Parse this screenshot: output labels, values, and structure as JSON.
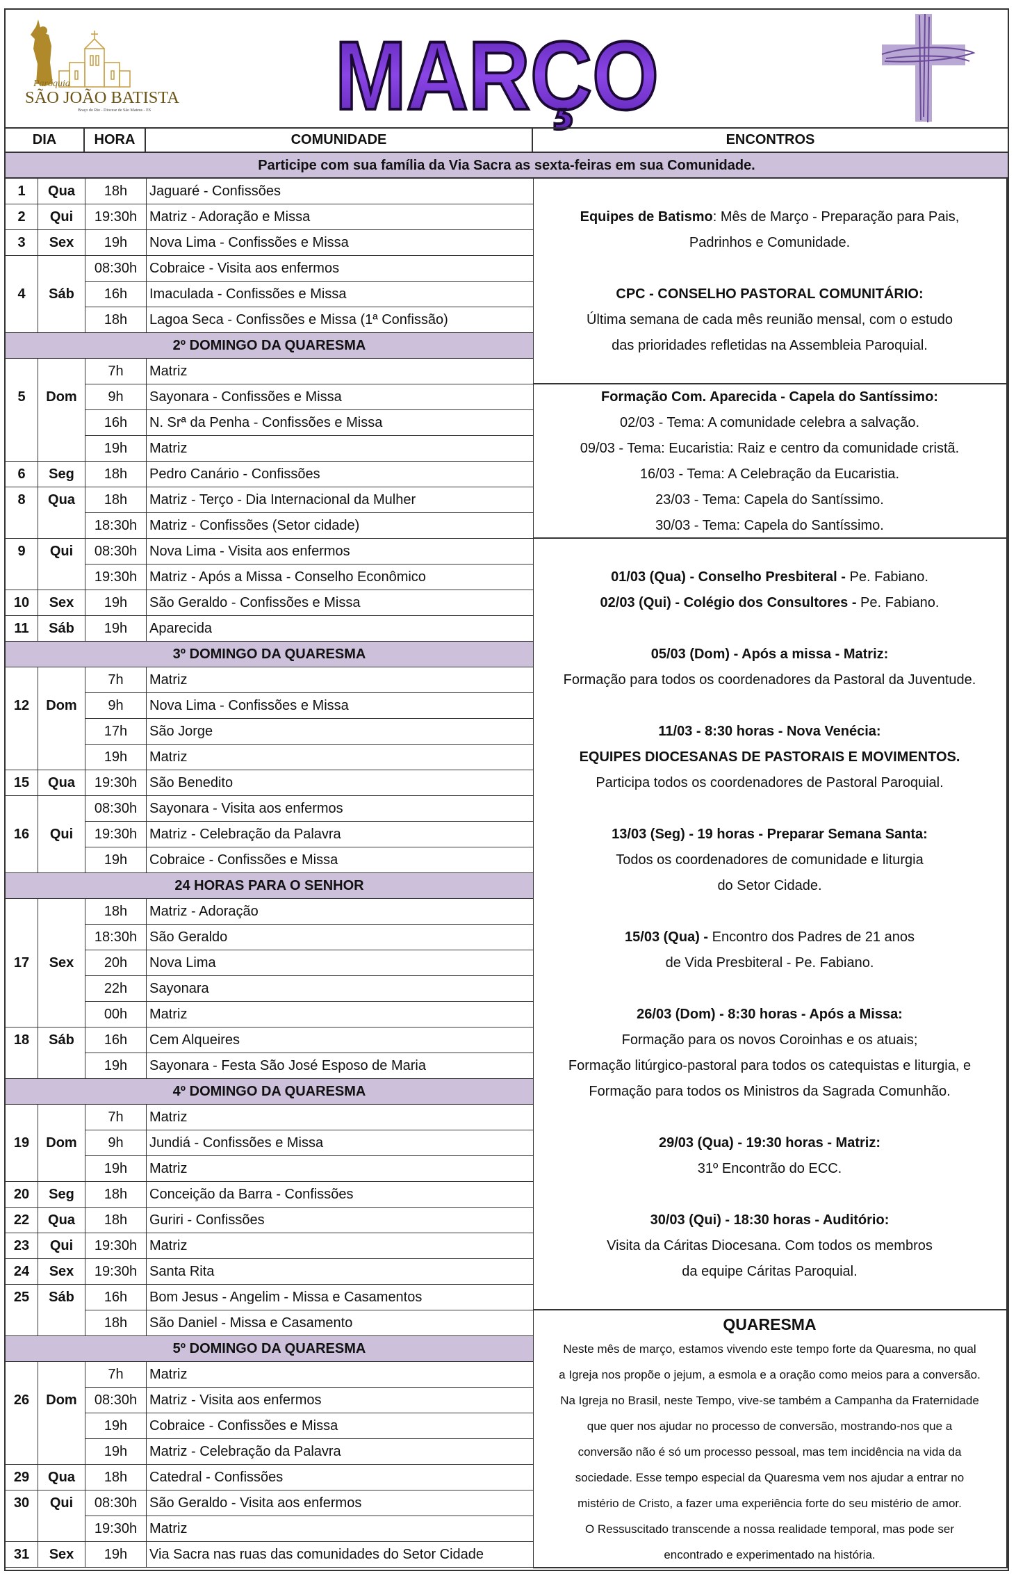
{
  "header": {
    "title": "MARÇO",
    "logo": {
      "line1": "Paróquia",
      "line2": "SÃO JOÃO BATISTA",
      "line3": "Braço do Rio - Diocese de São Mateus - ES"
    },
    "title_color": "#7b35d6",
    "cross_color": "#7b5aa6"
  },
  "columns": {
    "dia": "DIA",
    "hora": "HORA",
    "comunidade": "COMUNIDADE",
    "encontros": "ENCONTROS"
  },
  "notice": "Participe com sua família da Via Sacra as sexta-feiras em sua Comunidade.",
  "colors": {
    "band": "#ccc0da",
    "border": "#333333"
  },
  "schedule": [
    {
      "type": "day",
      "day": "1",
      "weekday": "Qua",
      "events": [
        {
          "time": "18h",
          "place": "Jaguaré - Confissões"
        }
      ]
    },
    {
      "type": "day",
      "day": "2",
      "weekday": "Qui",
      "events": [
        {
          "time": "19:30h",
          "place": "Matriz - Adoração e Missa"
        }
      ]
    },
    {
      "type": "day",
      "day": "3",
      "weekday": "Sex",
      "events": [
        {
          "time": "19h",
          "place": "Nova Lima - Confissões e Missa"
        }
      ]
    },
    {
      "type": "day",
      "day": "4",
      "weekday": "Sáb",
      "events": [
        {
          "time": "08:30h",
          "place": "Cobraice - Visita aos enfermos"
        },
        {
          "time": "16h",
          "place": "Imaculada - Confissões e Missa"
        },
        {
          "time": "18h",
          "place": "Lagoa Seca - Confissões e Missa (1ª Confissão)"
        }
      ]
    },
    {
      "type": "band",
      "label": "2º DOMINGO DA QUARESMA"
    },
    {
      "type": "day",
      "day": "5",
      "weekday": "Dom",
      "events": [
        {
          "time": "7h",
          "place": "Matriz"
        },
        {
          "time": "9h",
          "place": "Sayonara - Confissões e Missa"
        },
        {
          "time": "16h",
          "place": "N. Srª da Penha - Confissões e Missa"
        },
        {
          "time": "19h",
          "place": "Matriz"
        }
      ]
    },
    {
      "type": "day",
      "day": "6",
      "weekday": "Seg",
      "events": [
        {
          "time": "18h",
          "place": "Pedro Canário - Confissões"
        }
      ]
    },
    {
      "type": "day",
      "day": "8",
      "weekday": "Qua",
      "events": [
        {
          "time": "18h",
          "place": "Matriz - Terço - Dia Internacional da Mulher"
        },
        {
          "time": "18:30h",
          "place": "Matriz - Confissões (Setor cidade)"
        }
      ]
    },
    {
      "type": "day",
      "day": "9",
      "weekday": "Qui",
      "events": [
        {
          "time": "08:30h",
          "place": "Nova Lima - Visita aos enfermos"
        },
        {
          "time": "19:30h",
          "place": "Matriz - Após a Missa - Conselho Econômico"
        }
      ]
    },
    {
      "type": "day",
      "day": "10",
      "weekday": "Sex",
      "events": [
        {
          "time": "19h",
          "place": "São Geraldo - Confissões e Missa"
        }
      ]
    },
    {
      "type": "day",
      "day": "11",
      "weekday": "Sáb",
      "events": [
        {
          "time": "19h",
          "place": "Aparecida"
        }
      ]
    },
    {
      "type": "band",
      "label": "3º DOMINGO DA QUARESMA"
    },
    {
      "type": "day",
      "day": "12",
      "weekday": "Dom",
      "events": [
        {
          "time": "7h",
          "place": "Matriz"
        },
        {
          "time": "9h",
          "place": "Nova Lima - Confissões e Missa"
        },
        {
          "time": "17h",
          "place": "São Jorge"
        },
        {
          "time": "19h",
          "place": "Matriz"
        }
      ]
    },
    {
      "type": "day",
      "day": "15",
      "weekday": "Qua",
      "events": [
        {
          "time": "19:30h",
          "place": "São Benedito"
        }
      ]
    },
    {
      "type": "day",
      "day": "16",
      "weekday": "Qui",
      "events": [
        {
          "time": "08:30h",
          "place": "Sayonara - Visita aos enfermos"
        },
        {
          "time": "19:30h",
          "place": "Matriz - Celebração da Palavra"
        },
        {
          "time": "19h",
          "place": "Cobraice - Confissões e Missa"
        }
      ]
    },
    {
      "type": "band",
      "label": "24 HORAS PARA O SENHOR"
    },
    {
      "type": "day",
      "day": "17",
      "weekday": "Sex",
      "events": [
        {
          "time": "18h",
          "place": "Matriz - Adoração"
        },
        {
          "time": "18:30h",
          "place": "São Geraldo"
        },
        {
          "time": "20h",
          "place": "Nova Lima"
        },
        {
          "time": "22h",
          "place": "Sayonara"
        },
        {
          "time": "00h",
          "place": "Matriz"
        }
      ]
    },
    {
      "type": "day",
      "day": "18",
      "weekday": "Sáb",
      "events": [
        {
          "time": "16h",
          "place": "Cem Alqueires"
        },
        {
          "time": "19h",
          "place": "Sayonara - Festa São José Esposo de Maria"
        }
      ]
    },
    {
      "type": "band",
      "label": "4º DOMINGO DA QUARESMA"
    },
    {
      "type": "day",
      "day": "19",
      "weekday": "Dom",
      "events": [
        {
          "time": "7h",
          "place": "Matriz"
        },
        {
          "time": "9h",
          "place": "Jundiá - Confissões e Missa"
        },
        {
          "time": "19h",
          "place": "Matriz"
        }
      ]
    },
    {
      "type": "day",
      "day": "20",
      "weekday": "Seg",
      "events": [
        {
          "time": "18h",
          "place": "Conceição da Barra - Confissões"
        }
      ]
    },
    {
      "type": "day",
      "day": "22",
      "weekday": "Qua",
      "events": [
        {
          "time": "18h",
          "place": "Guriri - Confissões"
        }
      ]
    },
    {
      "type": "day",
      "day": "23",
      "weekday": "Qui",
      "events": [
        {
          "time": "19:30h",
          "place": "Matriz"
        }
      ]
    },
    {
      "type": "day",
      "day": "24",
      "weekday": "Sex",
      "events": [
        {
          "time": "19:30h",
          "place": "Santa Rita"
        }
      ]
    },
    {
      "type": "day",
      "day": "25",
      "weekday": "Sáb",
      "events": [
        {
          "time": "16h",
          "place": "Bom Jesus - Angelim - Missa e Casamentos"
        },
        {
          "time": "18h",
          "place": "São Daniel - Missa e Casamento"
        }
      ]
    },
    {
      "type": "band",
      "label": "5º DOMINGO DA QUARESMA"
    },
    {
      "type": "day",
      "day": "26",
      "weekday": "Dom",
      "events": [
        {
          "time": "7h",
          "place": "Matriz"
        },
        {
          "time": "08:30h",
          "place": "Matriz - Visita aos enfermos"
        },
        {
          "time": "19h",
          "place": "Cobraice - Confissões e Missa"
        },
        {
          "time": "19h",
          "place": "Matriz - Celebração da Palavra"
        }
      ]
    },
    {
      "type": "day",
      "day": "29",
      "weekday": "Qua",
      "events": [
        {
          "time": "18h",
          "place": "Catedral - Confissões"
        }
      ]
    },
    {
      "type": "day",
      "day": "30",
      "weekday": "Qui",
      "events": [
        {
          "time": "08:30h",
          "place": "São Geraldo - Visita aos enfermos"
        },
        {
          "time": "19:30h",
          "place": "Matriz"
        }
      ]
    },
    {
      "type": "day",
      "day": "31",
      "weekday": "Sex",
      "events": [
        {
          "time": "19h",
          "place": "Via Sacra nas ruas das comunidades do Setor Cidade"
        }
      ]
    }
  ],
  "encontros": {
    "sections": [
      {
        "lines": [
          [],
          [
            {
              "t": "Equipes de Batismo",
              "b": true
            },
            {
              "t": ": Mês de Março - Preparação para Pais,"
            }
          ],
          [
            {
              "t": "Padrinhos e Comunidade."
            }
          ],
          [],
          [
            {
              "t": "CPC - CONSELHO PASTORAL COMUNITÁRIO:",
              "b": true
            }
          ],
          [
            {
              "t": "Última semana de cada mês reunião mensal, com o estudo"
            }
          ],
          [
            {
              "t": "das prioridades refletidas na Assembleia Paroquial."
            }
          ],
          []
        ]
      },
      {
        "lines": [
          [
            {
              "t": "Formação Com. Aparecida - Capela do Santíssimo:",
              "b": true
            }
          ],
          [
            {
              "t": "02/03 - Tema: A comunidade celebra a salvação."
            }
          ],
          [
            {
              "t": "09/03 - Tema: Eucaristia: Raiz e centro da comunidade cristã."
            }
          ],
          [
            {
              "t": "16/03 - Tema: A Celebração da Eucaristia."
            }
          ],
          [
            {
              "t": "23/03 - Tema: Capela do Santíssimo."
            }
          ],
          [
            {
              "t": "30/03 - Tema: Capela do Santíssimo."
            }
          ]
        ]
      },
      {
        "lines": [
          [],
          [
            {
              "t": "01/03 (Qua) - Conselho Presbiteral - ",
              "b": true
            },
            {
              "t": "Pe. Fabiano."
            }
          ],
          [
            {
              "t": "02/03 (Qui) - Colégio dos Consultores - ",
              "b": true
            },
            {
              "t": "Pe. Fabiano."
            }
          ],
          [],
          [
            {
              "t": "05/03 (Dom) - Após a missa - Matriz:",
              "b": true
            }
          ],
          [
            {
              "t": "Formação para todos os coordenadores da Pastoral da Juventude."
            }
          ],
          [],
          [
            {
              "t": "11/03 - 8:30 horas - Nova Venécia:",
              "b": true
            }
          ],
          [
            {
              "t": "EQUIPES DIOCESANAS DE PASTORAIS E MOVIMENTOS.",
              "b": true
            }
          ],
          [
            {
              "t": "Participa todos os coordenadores de Pastoral Paroquial."
            }
          ],
          [],
          [
            {
              "t": "13/03 (Seg) - 19 horas - Preparar Semana Santa:",
              "b": true
            }
          ],
          [
            {
              "t": "Todos os coordenadores de comunidade e liturgia"
            }
          ],
          [
            {
              "t": "do Setor Cidade."
            }
          ],
          [],
          [
            {
              "t": "15/03 (Qua) - ",
              "b": true
            },
            {
              "t": "Encontro dos Padres de 21 anos"
            }
          ],
          [
            {
              "t": "de Vida Presbiteral -  Pe. Fabiano."
            }
          ],
          [],
          [
            {
              "t": "26/03 (Dom) - 8:30 horas - Após a Missa:",
              "b": true
            }
          ],
          [
            {
              "t": "Formação para os novos Coroinhas e os atuais;"
            }
          ],
          [
            {
              "t": "Formação litúrgico-pastoral para todos os catequistas e liturgia, e"
            }
          ],
          [
            {
              "t": "Formação para todos os Ministros da Sagrada Comunhão."
            }
          ],
          [],
          [
            {
              "t": "29/03 (Qua) - 19:30 horas - Matriz:",
              "b": true
            }
          ],
          [
            {
              "t": "31º Encontrão do ECC."
            }
          ],
          [],
          [
            {
              "t": "30/03 (Qui) - 18:30 horas - Auditório:",
              "b": true
            }
          ],
          [
            {
              "t": "Visita da Cáritas Diocesana. Com todos os membros"
            }
          ],
          [
            {
              "t": "da equipe Cáritas Paroquial."
            }
          ],
          []
        ]
      }
    ],
    "quaresma": {
      "title": "QUARESMA",
      "lines": [
        "Neste mês de março, estamos vivendo este tempo forte da Quaresma, no qual",
        "a Igreja nos propõe o jejum, a esmola e a oração como meios para a conversão.",
        "Na Igreja no Brasil, neste Tempo, vive-se também a Campanha da Fraternidade",
        "que quer nos ajudar no processo de conversão, mostrando-nos que a",
        "conversão não é só um processo pessoal, mas tem incidência na vida da",
        "sociedade. Esse tempo especial da Quaresma vem nos ajudar a entrar no",
        "mistério de Cristo, a fazer uma experiência forte do seu mistério de amor.",
        "O Ressuscitado transcende a nossa realidade temporal, mas pode ser",
        "encontrado e experimentado na história."
      ]
    }
  }
}
